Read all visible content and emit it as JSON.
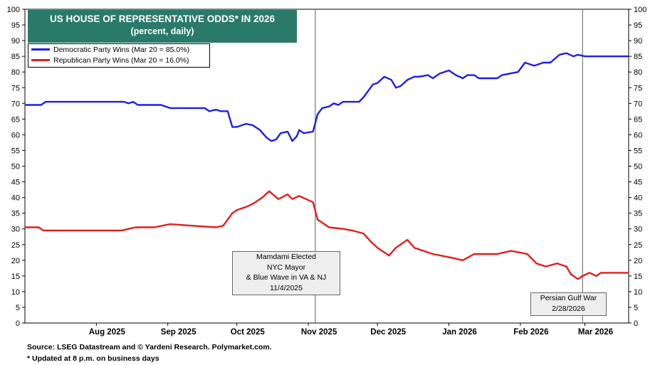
{
  "title": "US HOUSE OF REPRESENTATIVE ODDS* IN 2026",
  "subtitle": "(percent, daily)",
  "legend": {
    "dem": "Democratic Party Wins (Mar 20 = 85.0%)",
    "rep": "Republican Party Wins (Mar 20 = 16.0%)"
  },
  "annotations": {
    "event1": [
      "Mamdami Elected",
      "NYC Mayor",
      "& Blue Wave in VA & NJ",
      "11/4/2025"
    ],
    "event2": [
      "Persian Gulf War",
      "2/28/2026"
    ]
  },
  "footnotes": {
    "source": "Source: LSEG Datastream and © Yardeni Research. Polymarket.com.",
    "note": "* Updated at 8 p.m. on business days"
  },
  "colors": {
    "dem": "#1f1fe0",
    "rep": "#e01f1f",
    "title_bg": "#2a7a6a",
    "vline": "#777777"
  },
  "chart_data": {
    "type": "line",
    "title": "US HOUSE OF REPRESENTATIVE ODDS* IN 2026",
    "subtitle": "(percent, daily)",
    "ylim": [
      0,
      100
    ],
    "xlim": [
      "2025-07-01",
      "2026-03-20"
    ],
    "yticks": [
      0,
      5,
      10,
      15,
      20,
      25,
      30,
      35,
      40,
      45,
      50,
      55,
      60,
      65,
      70,
      75,
      80,
      85,
      90,
      95,
      100
    ],
    "grid": false,
    "legend_position": "top-left",
    "xticks": [
      {
        "date": "2025-08-01",
        "label": "Aug 2025"
      },
      {
        "date": "2025-09-01",
        "label": "Sep 2025"
      },
      {
        "date": "2025-10-01",
        "label": "Oct 2025"
      },
      {
        "date": "2025-11-01",
        "label": "Nov 2025"
      },
      {
        "date": "2025-12-01",
        "label": "Dec 2025"
      },
      {
        "date": "2026-01-01",
        "label": "Jan 2026"
      },
      {
        "date": "2026-02-01",
        "label": "Feb 2026"
      },
      {
        "date": "2026-03-01",
        "label": "Mar 2026"
      }
    ],
    "vlines": [
      {
        "date": "2025-11-04"
      },
      {
        "date": "2026-02-28"
      }
    ],
    "series": [
      {
        "name": "Democratic Party Wins (Mar 20 = 85.0%)",
        "points": [
          [
            "2025-07-01",
            69.5
          ],
          [
            "2025-07-08",
            69.5
          ],
          [
            "2025-07-10",
            70.5
          ],
          [
            "2025-07-24",
            70.5
          ],
          [
            "2025-08-05",
            70.5
          ],
          [
            "2025-08-13",
            70.5
          ],
          [
            "2025-08-15",
            70.0
          ],
          [
            "2025-08-17",
            70.5
          ],
          [
            "2025-08-19",
            69.5
          ],
          [
            "2025-08-26",
            69.5
          ],
          [
            "2025-08-29",
            69.5
          ],
          [
            "2025-09-02",
            68.5
          ],
          [
            "2025-09-12",
            68.5
          ],
          [
            "2025-09-17",
            68.5
          ],
          [
            "2025-09-19",
            67.5
          ],
          [
            "2025-09-22",
            68.0
          ],
          [
            "2025-09-24",
            67.5
          ],
          [
            "2025-09-27",
            67.5
          ],
          [
            "2025-09-29",
            62.5
          ],
          [
            "2025-10-01",
            62.5
          ],
          [
            "2025-10-05",
            63.5
          ],
          [
            "2025-10-08",
            63.0
          ],
          [
            "2025-10-11",
            61.5
          ],
          [
            "2025-10-14",
            59.0
          ],
          [
            "2025-10-16",
            58.0
          ],
          [
            "2025-10-18",
            58.5
          ],
          [
            "2025-10-20",
            60.5
          ],
          [
            "2025-10-23",
            61.0
          ],
          [
            "2025-10-25",
            58.0
          ],
          [
            "2025-10-27",
            59.5
          ],
          [
            "2025-10-28",
            61.5
          ],
          [
            "2025-10-30",
            60.5
          ],
          [
            "2025-11-03",
            61.0
          ],
          [
            "2025-11-05",
            66.5
          ],
          [
            "2025-11-07",
            68.5
          ],
          [
            "2025-11-10",
            69.0
          ],
          [
            "2025-11-12",
            70.0
          ],
          [
            "2025-11-14",
            69.5
          ],
          [
            "2025-11-16",
            70.5
          ],
          [
            "2025-11-23",
            70.5
          ],
          [
            "2025-11-25",
            72.0
          ],
          [
            "2025-11-29",
            76.0
          ],
          [
            "2025-12-01",
            76.5
          ],
          [
            "2025-12-04",
            78.5
          ],
          [
            "2025-12-07",
            77.5
          ],
          [
            "2025-12-09",
            75.0
          ],
          [
            "2025-12-11",
            75.5
          ],
          [
            "2025-12-14",
            77.5
          ],
          [
            "2025-12-17",
            78.5
          ],
          [
            "2025-12-19",
            78.5
          ],
          [
            "2025-12-23",
            79.0
          ],
          [
            "2025-12-25",
            78.0
          ],
          [
            "2025-12-28",
            79.5
          ],
          [
            "2026-01-01",
            80.5
          ],
          [
            "2026-01-04",
            79.0
          ],
          [
            "2026-01-07",
            78.0
          ],
          [
            "2026-01-09",
            79.0
          ],
          [
            "2026-01-12",
            79.0
          ],
          [
            "2026-01-14",
            78.0
          ],
          [
            "2026-01-22",
            78.0
          ],
          [
            "2026-01-24",
            79.0
          ],
          [
            "2026-01-31",
            80.0
          ],
          [
            "2026-02-03",
            83.0
          ],
          [
            "2026-02-07",
            82.0
          ],
          [
            "2026-02-11",
            83.0
          ],
          [
            "2026-02-14",
            83.0
          ],
          [
            "2026-02-18",
            85.5
          ],
          [
            "2026-02-21",
            86.0
          ],
          [
            "2026-02-24",
            85.0
          ],
          [
            "2026-02-26",
            85.5
          ],
          [
            "2026-03-01",
            85.0
          ],
          [
            "2026-03-10",
            85.0
          ],
          [
            "2026-03-20",
            85.0
          ]
        ]
      },
      {
        "name": "Republican Party Wins (Mar 20 = 16.0%)",
        "points": [
          [
            "2025-07-01",
            30.5
          ],
          [
            "2025-07-07",
            30.5
          ],
          [
            "2025-07-09",
            29.5
          ],
          [
            "2025-07-24",
            29.5
          ],
          [
            "2025-08-05",
            29.5
          ],
          [
            "2025-08-12",
            29.5
          ],
          [
            "2025-08-15",
            30.0
          ],
          [
            "2025-08-18",
            30.5
          ],
          [
            "2025-08-26",
            30.5
          ],
          [
            "2025-09-02",
            31.5
          ],
          [
            "2025-09-12",
            31.0
          ],
          [
            "2025-09-22",
            30.5
          ],
          [
            "2025-09-25",
            31.0
          ],
          [
            "2025-09-29",
            35.0
          ],
          [
            "2025-10-01",
            36.0
          ],
          [
            "2025-10-05",
            37.0
          ],
          [
            "2025-10-08",
            38.0
          ],
          [
            "2025-10-12",
            40.0
          ],
          [
            "2025-10-15",
            42.0
          ],
          [
            "2025-10-19",
            39.5
          ],
          [
            "2025-10-23",
            41.0
          ],
          [
            "2025-10-25",
            39.5
          ],
          [
            "2025-10-28",
            40.5
          ],
          [
            "2025-10-31",
            39.5
          ],
          [
            "2025-11-03",
            38.5
          ],
          [
            "2025-11-05",
            33.0
          ],
          [
            "2025-11-10",
            30.5
          ],
          [
            "2025-11-16",
            30.0
          ],
          [
            "2025-11-20",
            29.5
          ],
          [
            "2025-11-25",
            28.5
          ],
          [
            "2025-11-28",
            26.0
          ],
          [
            "2025-12-01",
            24.0
          ],
          [
            "2025-12-04",
            22.5
          ],
          [
            "2025-12-06",
            21.5
          ],
          [
            "2025-12-09",
            24.0
          ],
          [
            "2025-12-12",
            25.5
          ],
          [
            "2025-12-14",
            26.5
          ],
          [
            "2025-12-17",
            24.0
          ],
          [
            "2025-12-25",
            22.0
          ],
          [
            "2026-01-01",
            21.0
          ],
          [
            "2026-01-07",
            20.0
          ],
          [
            "2026-01-12",
            22.0
          ],
          [
            "2026-01-22",
            22.0
          ],
          [
            "2026-01-28",
            23.0
          ],
          [
            "2026-02-04",
            22.0
          ],
          [
            "2026-02-08",
            19.0
          ],
          [
            "2026-02-12",
            18.0
          ],
          [
            "2026-02-17",
            19.0
          ],
          [
            "2026-02-21",
            18.0
          ],
          [
            "2026-02-23",
            15.5
          ],
          [
            "2026-02-26",
            14.0
          ],
          [
            "2026-02-28",
            15.0
          ],
          [
            "2026-03-03",
            16.0
          ],
          [
            "2026-03-06",
            15.0
          ],
          [
            "2026-03-08",
            16.0
          ],
          [
            "2026-03-20",
            16.0
          ]
        ]
      }
    ]
  }
}
